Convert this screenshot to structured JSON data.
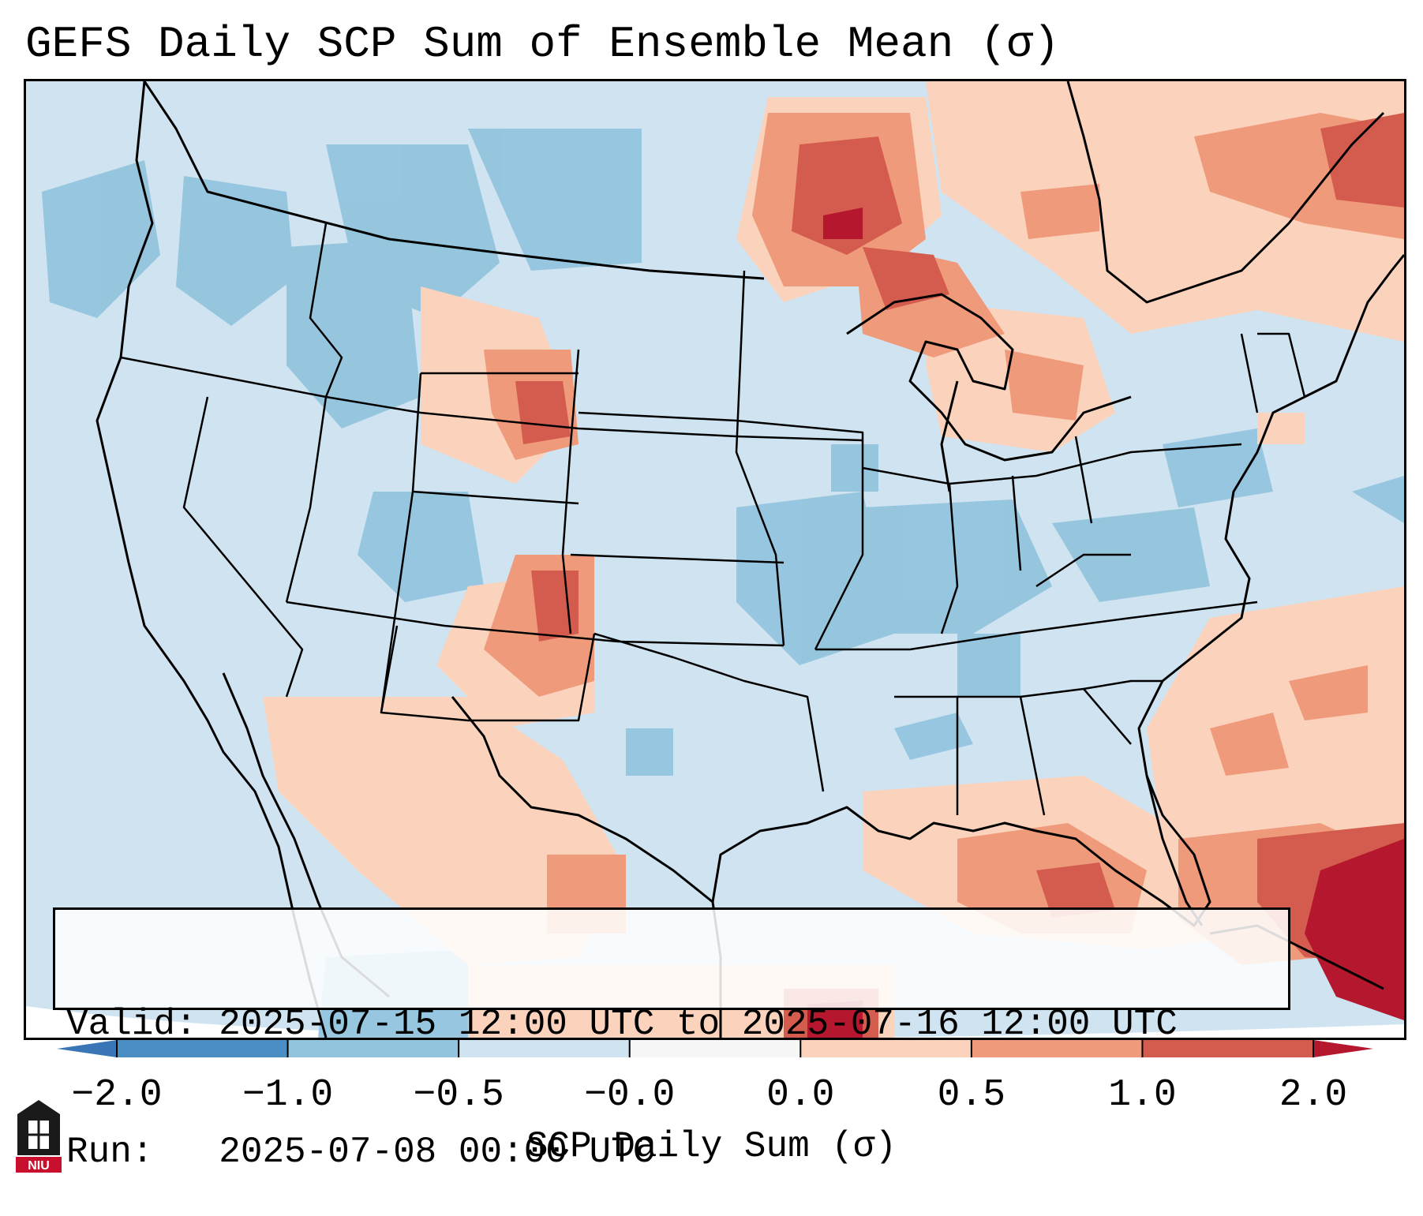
{
  "title": "GEFS Daily SCP Sum of Ensemble Mean (σ)",
  "info": {
    "valid_line": "Valid: 2025-07-15 12:00 UTC to 2025-07-16 12:00 UTC",
    "run_line": "Run:   2025-07-08 00:00 UTC"
  },
  "colorbar": {
    "label": "SCP Daily Sum (σ)",
    "ticks": [
      "−2.0",
      "−1.0",
      "−0.5",
      "−0.0",
      "0.0",
      "0.5",
      "1.0",
      "2.0"
    ],
    "colors": [
      "#4a8ec4",
      "#93c4de",
      "#cfe3f0",
      "#f7f7f7",
      "#fbd3bd",
      "#ef9a7a",
      "#d45c4e"
    ],
    "extend_low_color": "#3a76b6",
    "extend_high_color": "#b5172e"
  },
  "map": {
    "projection": "Lambert Conformal (CONUS)",
    "base_color": "#cfe3f0",
    "ocean_edge_color": "#ffffff",
    "outline_color": "#000000",
    "anomaly_colors": {
      "strong_negative": "#93c4de",
      "weak_positive": "#fbd3bd",
      "moderate_positive": "#ef9a7a",
      "strong_positive": "#d45c4e",
      "extreme_positive": "#b5172e"
    }
  },
  "logo": {
    "text": "NIU",
    "color": "#c8102e"
  }
}
